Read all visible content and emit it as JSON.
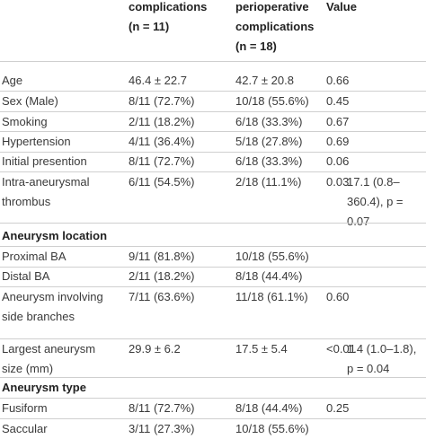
{
  "header": {
    "columns": [
      [
        "complications",
        "(n = 11)"
      ],
      [
        "perioperative",
        "complications",
        "(n = 18)"
      ],
      [
        "Value"
      ]
    ]
  },
  "table": {
    "rows": [
      [
        "Age",
        "46.4 ± 22.7",
        "42.7 ± 20.8",
        "0.66"
      ],
      [
        "Sex (Male)",
        "8/11 (72.7%)",
        "10/18 (55.6%)",
        "0.45"
      ],
      [
        "Smoking",
        "2/11 (18.2%)",
        "6/18 (33.3%)",
        "0.67"
      ],
      [
        "Hypertension",
        "4/11 (36.4%)",
        "5/18 (27.8%)",
        "0.69"
      ],
      [
        "Initial presention",
        "8/11 (72.7%)",
        "6/18 (33.3%)",
        "0.06"
      ],
      [
        "Intra-aneurysmal thrombus",
        "6/11 (54.5%)",
        "2/18 (11.1%)",
        "0.03",
        "17.1 (0.8–360.4), p = 0.07"
      ],
      [
        "Aneurysm location"
      ],
      [
        "Proximal BA",
        "9/11 (81.8%)",
        "10/18 (55.6%)"
      ],
      [
        "Distal BA",
        "2/11 (18.2%)",
        "8/18 (44.4%)"
      ],
      [
        "Aneurysm involving side branches",
        "7/11 (63.6%)",
        "11/18 (61.1%)",
        "0.60"
      ],
      [
        "Largest aneurysm size (mm)",
        "29.9 ± 6.2",
        "17.5 ± 5.4",
        "<0.01",
        "1.4 (1.0–1.8), p = 0.04"
      ],
      [
        "Aneurysm type"
      ],
      [
        "Fusiform",
        "8/11 (72.7%)",
        "8/18 (44.4%)",
        "0.25"
      ],
      [
        "Saccular",
        "3/11 (27.3%)",
        "10/18 (55.6%)"
      ]
    ]
  }
}
